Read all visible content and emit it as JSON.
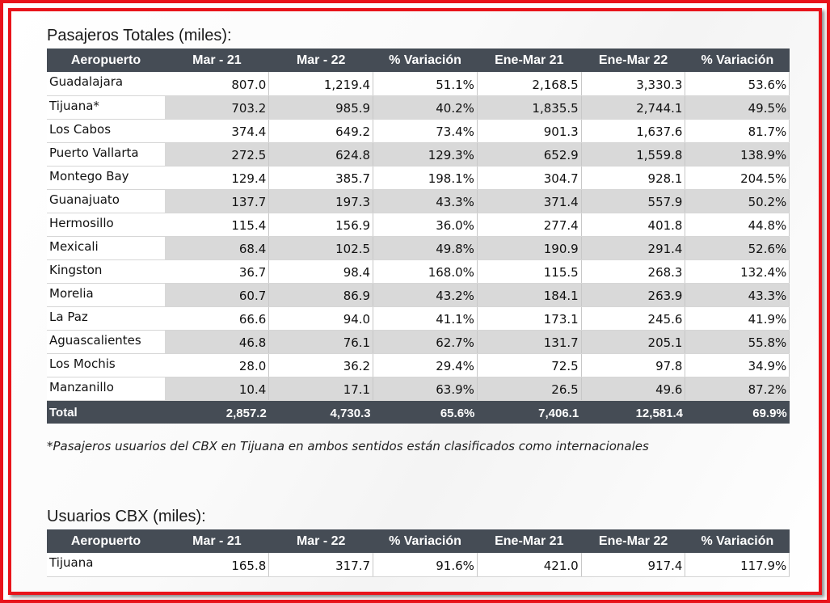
{
  "section1": {
    "title": "Pasajeros Totales (miles):",
    "headers": [
      "Aeropuerto",
      "Mar - 21",
      "Mar - 22",
      "% Variación",
      "Ene-Mar 21",
      "Ene-Mar 22",
      "% Variación"
    ],
    "rows": [
      [
        "Guadalajara",
        "807.0",
        "1,219.4",
        "51.1%",
        "2,168.5",
        "3,330.3",
        "53.6%"
      ],
      [
        "Tijuana*",
        "703.2",
        "985.9",
        "40.2%",
        "1,835.5",
        "2,744.1",
        "49.5%"
      ],
      [
        "Los Cabos",
        "374.4",
        "649.2",
        "73.4%",
        "901.3",
        "1,637.6",
        "81.7%"
      ],
      [
        "Puerto Vallarta",
        "272.5",
        "624.8",
        "129.3%",
        "652.9",
        "1,559.8",
        "138.9%"
      ],
      [
        "Montego Bay",
        "129.4",
        "385.7",
        "198.1%",
        "304.7",
        "928.1",
        "204.5%"
      ],
      [
        "Guanajuato",
        "137.7",
        "197.3",
        "43.3%",
        "371.4",
        "557.9",
        "50.2%"
      ],
      [
        "Hermosillo",
        "115.4",
        "156.9",
        "36.0%",
        "277.4",
        "401.8",
        "44.8%"
      ],
      [
        "Mexicali",
        "68.4",
        "102.5",
        "49.8%",
        "190.9",
        "291.4",
        "52.6%"
      ],
      [
        "Kingston",
        "36.7",
        "98.4",
        "168.0%",
        "115.5",
        "268.3",
        "132.4%"
      ],
      [
        "Morelia",
        "60.7",
        "86.9",
        "43.2%",
        "184.1",
        "263.9",
        "43.3%"
      ],
      [
        "La Paz",
        "66.6",
        "94.0",
        "41.1%",
        "173.1",
        "245.6",
        "41.9%"
      ],
      [
        "Aguascalientes",
        "46.8",
        "76.1",
        "62.7%",
        "131.7",
        "205.1",
        "55.8%"
      ],
      [
        "Los Mochis",
        "28.0",
        "36.2",
        "29.4%",
        "72.5",
        "97.8",
        "34.9%"
      ],
      [
        "Manzanillo",
        "10.4",
        "17.1",
        "63.9%",
        "26.5",
        "49.6",
        "87.2%"
      ]
    ],
    "total": [
      "Total",
      "2,857.2",
      "4,730.3",
      "65.6%",
      "7,406.1",
      "12,581.4",
      "69.9%"
    ],
    "footnote": "*Pasajeros usuarios del CBX en Tijuana en ambos sentidos están clasificados como internacionales"
  },
  "section2": {
    "title": "Usuarios CBX (miles):",
    "headers": [
      "Aeropuerto",
      "Mar - 21",
      "Mar - 22",
      "% Variación",
      "Ene-Mar 21",
      "Ene-Mar 22",
      "% Variación"
    ],
    "rows": [
      [
        "Tijuana",
        "165.8",
        "317.7",
        "91.6%",
        "421.0",
        "917.4",
        "117.9%"
      ]
    ]
  },
  "colors": {
    "frame": "#e8141b",
    "header_bg": "#454c55",
    "header_text": "#ffffff",
    "stripe": "#d9d9d9"
  }
}
